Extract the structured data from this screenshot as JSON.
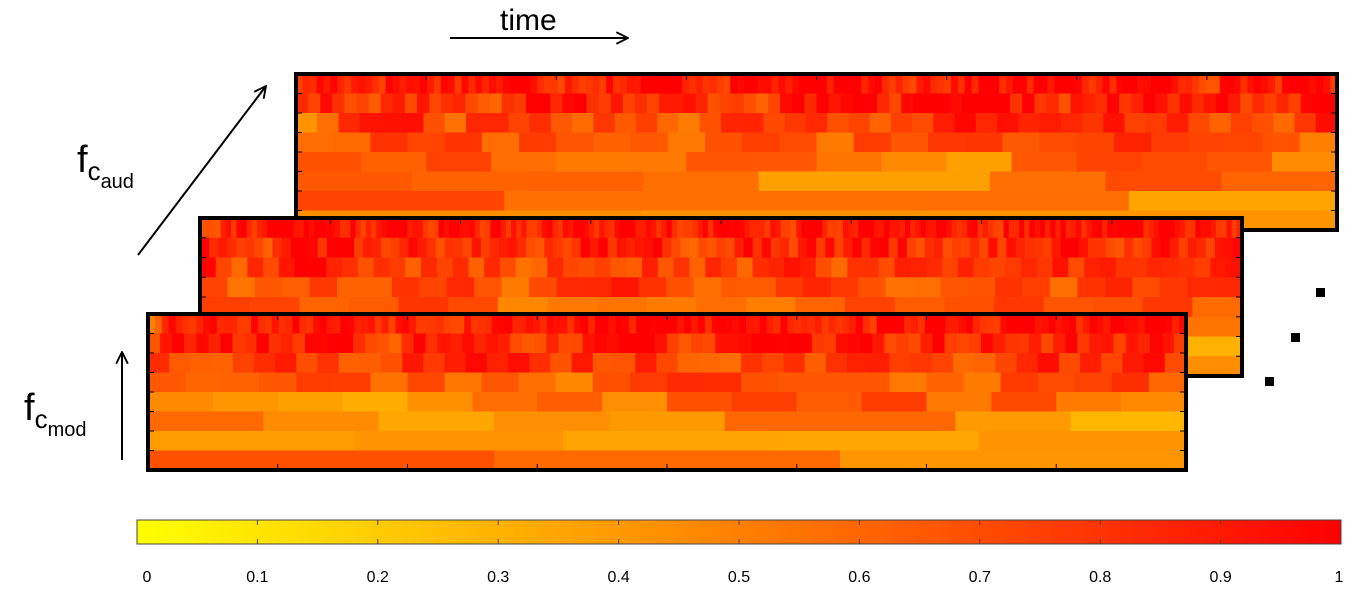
{
  "labels": {
    "time": "time",
    "f_main": "f",
    "f_aud_sub": "c",
    "f_aud_subsub": "aud",
    "f_mod_sub": "c",
    "f_mod_subsub": "mod"
  },
  "colorbar": {
    "min": 0,
    "max": 1,
    "ticks": [
      "0",
      "0.1",
      "0.2",
      "0.3",
      "0.4",
      "0.5",
      "0.6",
      "0.7",
      "0.8",
      "0.9",
      "1"
    ],
    "color_low": "#ffff00",
    "color_high": "#ff0000"
  },
  "colors": {
    "frame": "#000000",
    "dot": "#000000"
  }
}
